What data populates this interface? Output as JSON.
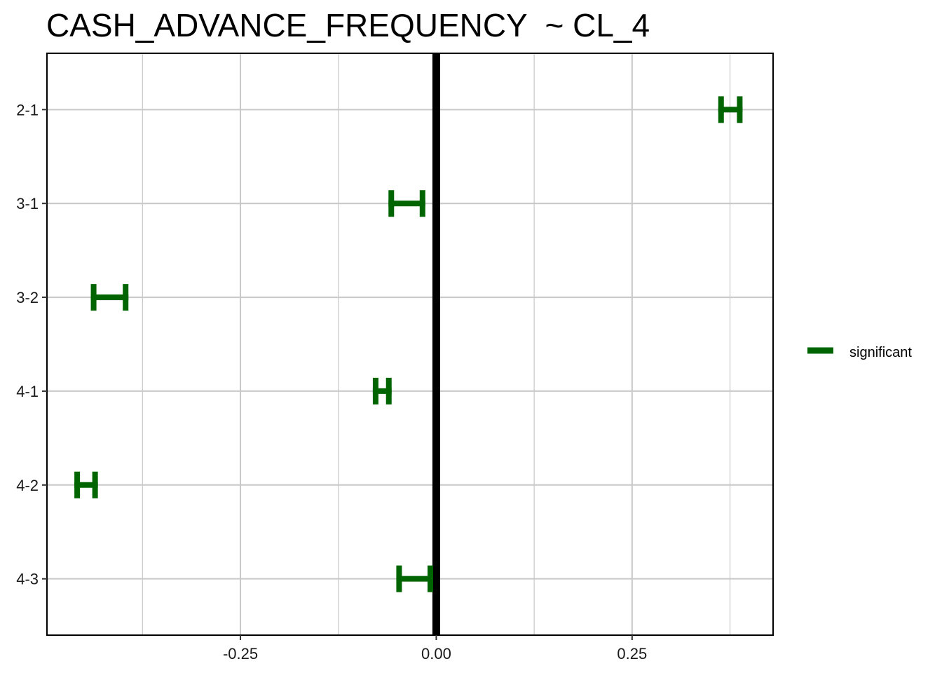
{
  "chart_data": {
    "type": "errorbar",
    "title": "CASH_ADVANCE_FREQUENCY  ~ CL_4",
    "xlabel": "",
    "ylabel": "",
    "xlim": [
      -0.497,
      0.43
    ],
    "x_ticks": [
      -0.25,
      0.0,
      0.25
    ],
    "x_tick_labels": [
      "-0.25",
      "0.00",
      "0.25"
    ],
    "categories": [
      "4-3",
      "4-2",
      "4-1",
      "3-2",
      "3-1",
      "2-1"
    ],
    "intervals": [
      {
        "comparison": "4-3",
        "lwr": -0.051,
        "upr": -0.004,
        "group": "significant"
      },
      {
        "comparison": "4-2",
        "lwr": -0.462,
        "upr": -0.432,
        "group": "significant"
      },
      {
        "comparison": "4-1",
        "lwr": -0.081,
        "upr": -0.057,
        "group": "significant"
      },
      {
        "comparison": "3-2",
        "lwr": -0.441,
        "upr": -0.393,
        "group": "significant"
      },
      {
        "comparison": "3-1",
        "lwr": -0.061,
        "upr": -0.014,
        "group": "significant"
      },
      {
        "comparison": "2-1",
        "lwr": 0.36,
        "upr": 0.391,
        "group": "significant"
      }
    ],
    "reference_line": 0.0,
    "grid": true,
    "legend": {
      "position": "right",
      "items": [
        {
          "label": "significant",
          "color": "#006400"
        }
      ]
    },
    "colors": {
      "significant": "#006400",
      "reference": "#000000",
      "grid": "#c8c8c8"
    }
  }
}
